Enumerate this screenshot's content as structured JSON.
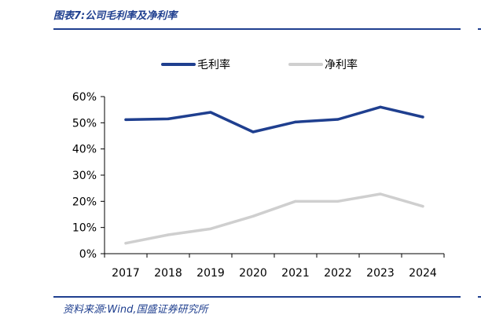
{
  "figure": {
    "title": "图表7:公司毛利率及净利率",
    "source": "资料来源:Wind,国盛证券研究所"
  },
  "colors": {
    "brand": "#1f3f8f",
    "series1": "#1f3f8f",
    "series2": "#cfcfcf"
  },
  "chart_data": {
    "type": "line",
    "categories": [
      "2017",
      "2018",
      "2019",
      "2020",
      "2021",
      "2022",
      "2023",
      "2024"
    ],
    "series": [
      {
        "name": "毛利率",
        "values": [
          51.2,
          51.5,
          54.0,
          46.5,
          50.3,
          51.3,
          56.0,
          52.2
        ]
      },
      {
        "name": "净利率",
        "values": [
          4.0,
          7.2,
          9.5,
          14.3,
          20.0,
          20.0,
          22.8,
          18.1
        ]
      }
    ],
    "ylim": [
      0,
      60
    ],
    "yticks": [
      0,
      10,
      20,
      30,
      40,
      50,
      60
    ],
    "ytick_labels": [
      "0%",
      "10%",
      "20%",
      "30%",
      "40%",
      "50%",
      "60%"
    ],
    "xlabel": "",
    "ylabel": "",
    "grid": false,
    "legend_position": "top"
  }
}
